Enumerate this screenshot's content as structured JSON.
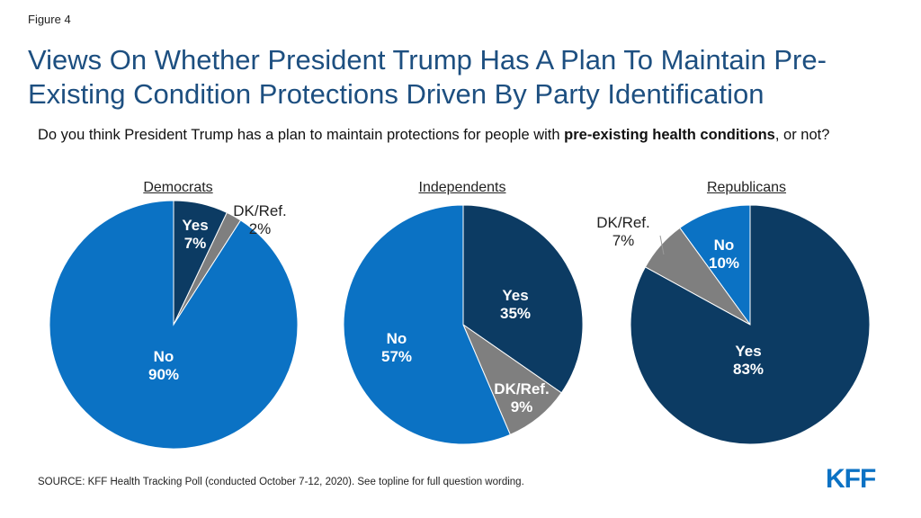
{
  "figure_label": "Figure 4",
  "title": "Views On Whether President Trump Has A Plan To Maintain Pre-Existing Condition Protections Driven By Party Identification",
  "question": {
    "part1": "Do you think President Trump has a plan to maintain protections for people with ",
    "bold": "pre-existing health conditions",
    "part2": ", or not?"
  },
  "source": "SOURCE: KFF Health Tracking Poll (conducted October 7-12, 2020). See topline for full question wording.",
  "logo": "KFF",
  "colors": {
    "yes": "#0c3b63",
    "no": "#0b72c4",
    "dk": "#7f7f7f",
    "title": "#1d4f80"
  },
  "chart_data": [
    {
      "type": "pie",
      "title": "Democrats",
      "slices": [
        {
          "label": "Yes",
          "value": 7,
          "value_text": "7%"
        },
        {
          "label": "DK/Ref.",
          "value": 2,
          "value_text": "2%"
        },
        {
          "label": "No",
          "value": 90,
          "value_text": "90%"
        }
      ]
    },
    {
      "type": "pie",
      "title": "Independents",
      "slices": [
        {
          "label": "Yes",
          "value": 35,
          "value_text": "35%"
        },
        {
          "label": "DK/Ref.",
          "value": 9,
          "value_text": "9%"
        },
        {
          "label": "No",
          "value": 57,
          "value_text": "57%"
        }
      ]
    },
    {
      "type": "pie",
      "title": "Republicans",
      "slices": [
        {
          "label": "Yes",
          "value": 83,
          "value_text": "83%"
        },
        {
          "label": "DK/Ref.",
          "value": 7,
          "value_text": "7%"
        },
        {
          "label": "No",
          "value": 10,
          "value_text": "10%"
        }
      ]
    }
  ]
}
